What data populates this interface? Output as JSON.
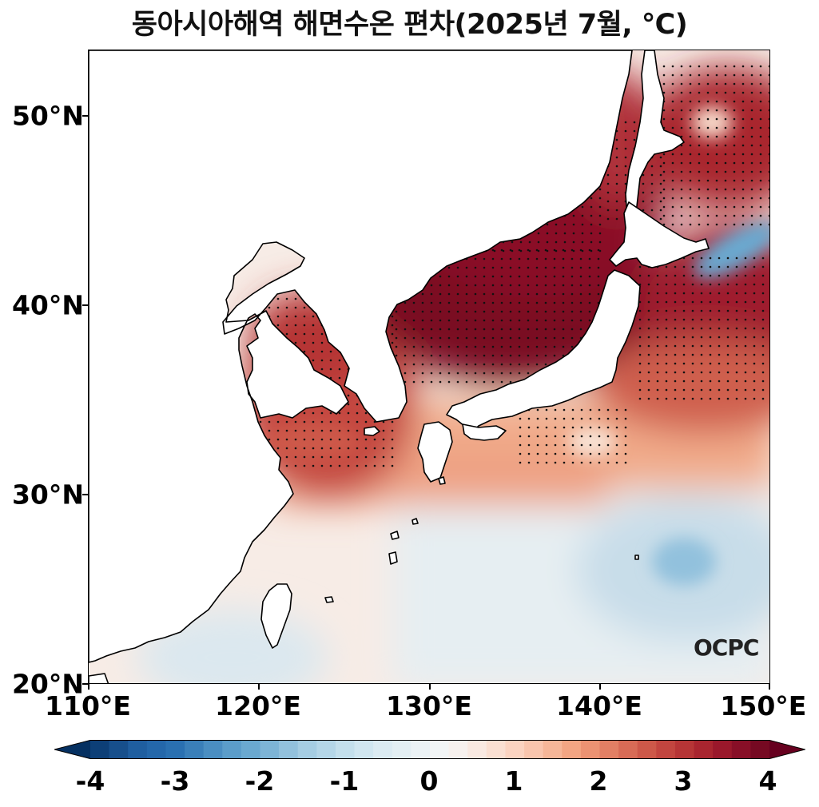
{
  "title": "동아시아해역 해면수온 편차(2025년 7월, ℃)",
  "logo": "OCPC",
  "map": {
    "region": "East Asian seas",
    "lon_range": [
      110,
      150
    ],
    "lat_range": [
      20,
      53.5
    ],
    "y_ticks": [
      {
        "value": 20,
        "label": "20°N"
      },
      {
        "value": 30,
        "label": "30°N"
      },
      {
        "value": 40,
        "label": "40°N"
      },
      {
        "value": 50,
        "label": "50°N"
      }
    ],
    "x_ticks": [
      {
        "value": 110,
        "label": "110°E"
      },
      {
        "value": 120,
        "label": "120°E"
      },
      {
        "value": 130,
        "label": "130°E"
      },
      {
        "value": 140,
        "label": "140°E"
      },
      {
        "value": 150,
        "label": "150°E"
      }
    ],
    "stippling": "dots mark significant anomalies",
    "land_color": "#ffffff"
  },
  "colorbar": {
    "min": -4,
    "max": 4,
    "step": 0.2,
    "extend": "both",
    "ticks": [
      "-4",
      "-3",
      "-2",
      "-1",
      "0",
      "1",
      "2",
      "3",
      "4"
    ]
  },
  "colors": {
    "anomaly_colors": [
      "#053061",
      "#0d3f77",
      "#174f8c",
      "#1f5ea0",
      "#2467aa",
      "#2a70b1",
      "#3a7fb9",
      "#4a8ec2",
      "#5b9dca",
      "#6aa9d0",
      "#7db4d6",
      "#92c1dd",
      "#a5cde3",
      "#b4d6e8",
      "#c3dfec",
      "#d0e6f0",
      "#dbebf2",
      "#e3eff3",
      "#ebf2f5",
      "#f2f5f6",
      "#f7f1ee",
      "#f9e9e1",
      "#fadfd1",
      "#fbd3c0",
      "#f9c5ad",
      "#f6b698",
      "#f3a583",
      "#ec9272",
      "#e27f64",
      "#d86b56",
      "#cd5849",
      "#c2453f",
      "#b63536",
      "#a9252f",
      "#9a182b",
      "#880f27",
      "#760922",
      "#67001f"
    ]
  }
}
